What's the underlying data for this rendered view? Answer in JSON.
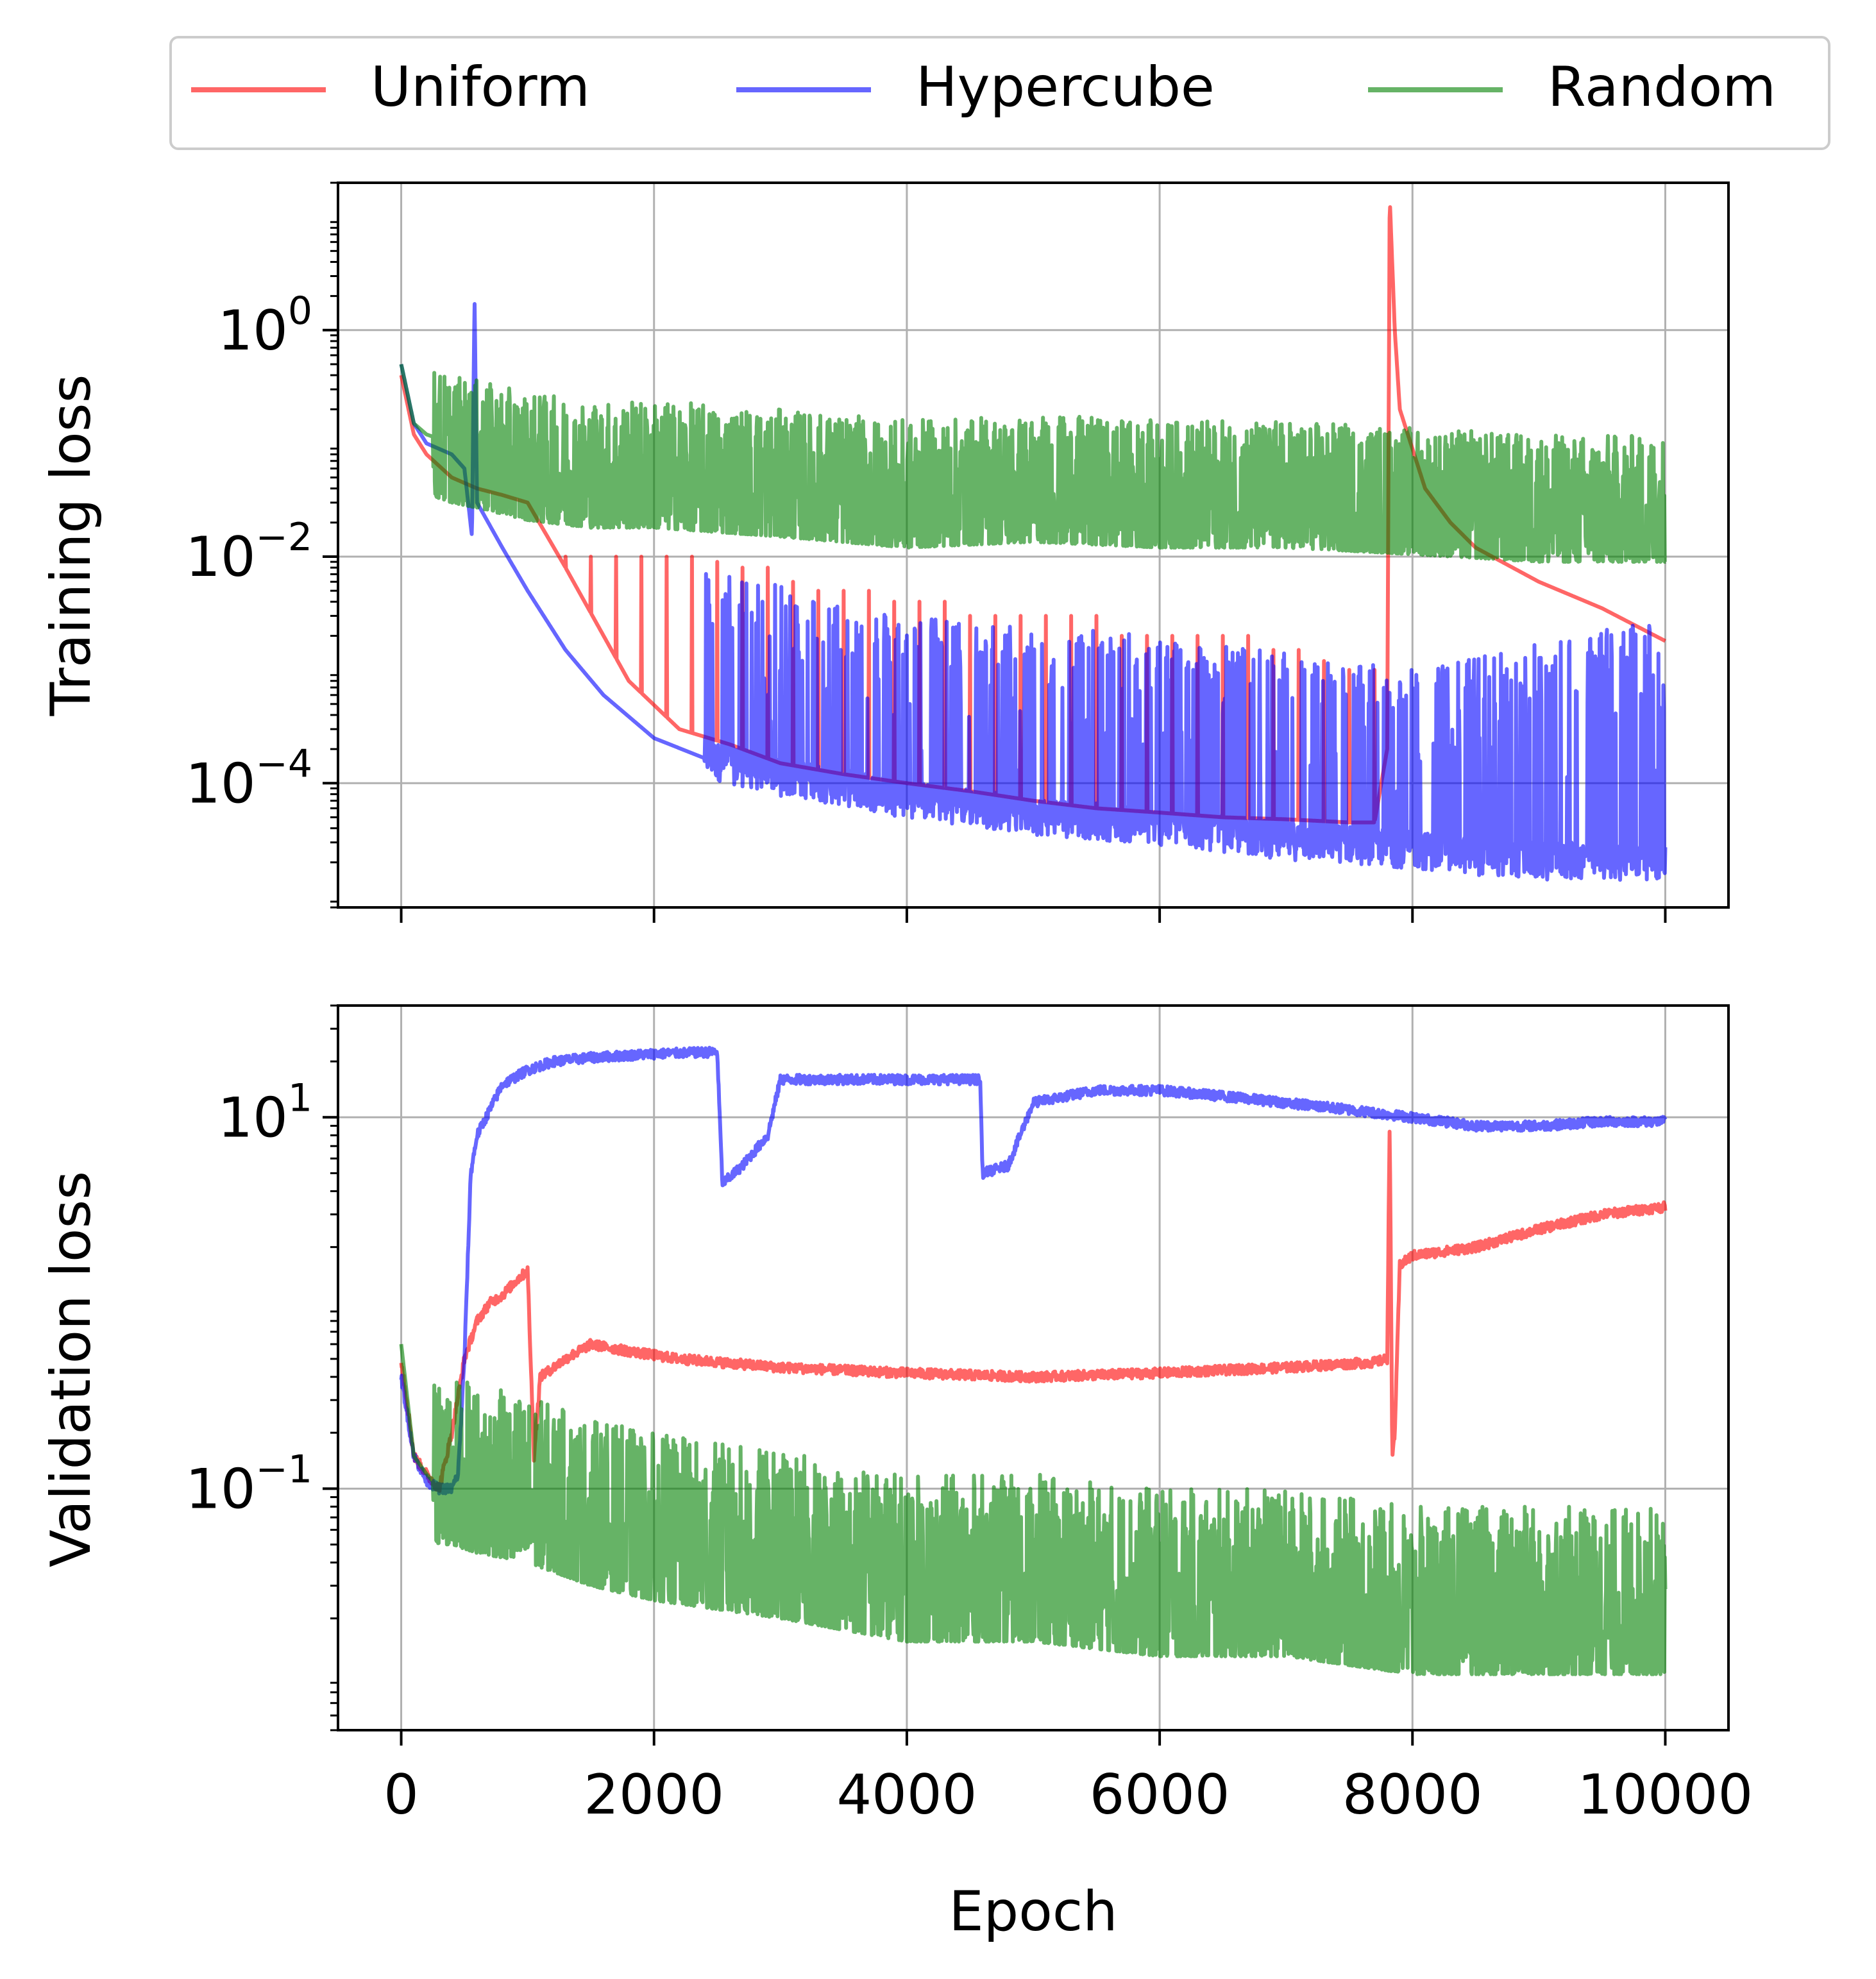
{
  "colors": {
    "uniform": "#ff0000",
    "hypercube": "#0000ff",
    "random": "#008000",
    "grid": "#b0b0b0",
    "axes": "#000000"
  },
  "legend": {
    "placement": "top-center, above plots, 3 columns",
    "entries": [
      "Uniform",
      "Hypercube",
      "Random"
    ]
  },
  "chart_data": [
    {
      "type": "line",
      "panel": "top",
      "title": "",
      "xlabel": "",
      "ylabel": "Training loss",
      "yscale": "log",
      "xlim": [
        -500,
        10500
      ],
      "ylim": [
        8e-06,
        20
      ],
      "xticks": [
        0,
        2000,
        4000,
        6000,
        8000,
        10000
      ],
      "xtick_labels_visible": false,
      "yticks": [
        {
          "value": 1,
          "base": "10",
          "exp": "0"
        },
        {
          "value": 0.01,
          "base": "10",
          "exp": "−2"
        },
        {
          "value": 0.0001,
          "base": "10",
          "exp": "−4"
        }
      ],
      "grid": true,
      "noise_level": "high (oscillating)",
      "series": [
        {
          "name": "Uniform",
          "color": "#ff0000",
          "x": [
            0,
            100,
            200,
            400,
            600,
            800,
            1000,
            1300,
            1800,
            2200,
            2600,
            3000,
            3500,
            4000,
            4500,
            5000,
            5500,
            6000,
            6500,
            7000,
            7500,
            7700,
            7800,
            7820,
            7860,
            7900,
            8100,
            8300,
            8500,
            9000,
            9500,
            10000
          ],
          "y": [
            0.4,
            0.12,
            0.08,
            0.05,
            0.04,
            0.035,
            0.03,
            0.008,
            0.0008,
            0.0003,
            0.00022,
            0.00015,
            0.00012,
            0.0001,
            8.5e-05,
            7e-05,
            6e-05,
            5.5e-05,
            5e-05,
            4.8e-05,
            4.5e-05,
            4.5e-05,
            0.0002,
            15,
            1.0,
            0.2,
            0.04,
            0.02,
            0.012,
            0.006,
            0.0035,
            0.0018
          ],
          "spikes": {
            "x": [
              1300,
              1500,
              1700,
              1900,
              2100,
              2300,
              2500,
              2700,
              2900,
              3100,
              3300,
              3500,
              3700,
              3900,
              4100,
              4300,
              4500,
              4700,
              4900,
              5100,
              5300,
              5500,
              5700,
              5900,
              6100,
              6300,
              6500,
              6700,
              6900,
              7100,
              7300,
              7500,
              7700
            ],
            "y": [
              0.01,
              0.01,
              0.01,
              0.01,
              0.01,
              0.01,
              0.009,
              0.008,
              0.008,
              0.006,
              0.005,
              0.005,
              0.005,
              0.004,
              0.004,
              0.004,
              0.003,
              0.003,
              0.003,
              0.003,
              0.003,
              0.003,
              0.002,
              0.002,
              0.002,
              0.002,
              0.002,
              0.002,
              0.0015,
              0.0015,
              0.0012,
              0.001,
              0.001
            ]
          }
        },
        {
          "name": "Hypercube",
          "color": "#0000ff",
          "x": [
            0,
            100,
            200,
            400,
            500,
            560,
            580,
            600,
            800,
            1000,
            1300,
            1600,
            2000,
            2500,
            3000,
            3500,
            4000,
            4500,
            5000,
            5500,
            6000,
            6500,
            7000,
            7500,
            8000,
            8500,
            9000,
            9500,
            10000
          ],
          "y": [
            0.5,
            0.15,
            0.1,
            0.08,
            0.06,
            0.015,
            2.0,
            0.03,
            0.012,
            0.005,
            0.0015,
            0.0006,
            0.00025,
            0.00015,
            0.00011,
            9e-05,
            7e-05,
            6e-05,
            5e-05,
            4.5e-05,
            4e-05,
            3.5e-05,
            3e-05,
            2.8e-05,
            2.5e-05,
            2.2e-05,
            2e-05,
            2e-05,
            2e-05
          ],
          "oscillation": {
            "from_x": 2400,
            "to_x": 10000,
            "high": [
              0.008,
              0.003,
              0.002,
              0.001,
              0.003
            ],
            "high_x": [
              2400,
              4000,
              6000,
              8000,
              10000
            ]
          }
        },
        {
          "name": "Random",
          "color": "#008000",
          "x": [
            0,
            100,
            200,
            400,
            600,
            1000,
            1500,
            2000,
            3000,
            4000,
            5000,
            6000,
            7000,
            8000,
            9000,
            10000
          ],
          "y": [
            0.5,
            0.15,
            0.12,
            0.1,
            0.09,
            0.07,
            0.06,
            0.06,
            0.05,
            0.04,
            0.045,
            0.04,
            0.04,
            0.035,
            0.03,
            0.03
          ],
          "oscillation": {
            "low_factor": 0.3,
            "high_factor": 4
          }
        }
      ]
    },
    {
      "type": "line",
      "panel": "bottom",
      "title": "",
      "xlabel": "Epoch",
      "ylabel": "Validation loss",
      "yscale": "log",
      "xlim": [
        -500,
        10500
      ],
      "ylim": [
        0.005,
        40
      ],
      "xticks": [
        0,
        2000,
        4000,
        6000,
        8000,
        10000
      ],
      "xtick_labels": [
        "0",
        "2000",
        "4000",
        "6000",
        "8000",
        "10000"
      ],
      "yticks": [
        {
          "value": 10,
          "base": "10",
          "exp": "1"
        },
        {
          "value": 0.1,
          "base": "10",
          "exp": "−1"
        }
      ],
      "grid": true,
      "series": [
        {
          "name": "Uniform",
          "color": "#ff0000",
          "x": [
            0,
            100,
            200,
            300,
            400,
            500,
            600,
            700,
            800,
            900,
            1000,
            1050,
            1100,
            1300,
            1500,
            1800,
            2200,
            3000,
            4000,
            5000,
            6000,
            7000,
            7700,
            7800,
            7820,
            7840,
            7860,
            7900,
            8000,
            8500,
            9000,
            9500,
            10000
          ],
          "y": [
            0.5,
            0.15,
            0.12,
            0.1,
            0.2,
            0.5,
            0.8,
            1.0,
            1.1,
            1.3,
            1.5,
            0.15,
            0.4,
            0.5,
            0.6,
            0.55,
            0.5,
            0.45,
            0.42,
            0.4,
            0.42,
            0.45,
            0.48,
            0.5,
            10,
            0.15,
            0.2,
            1.6,
            1.8,
            2.0,
            2.5,
            3.0,
            3.3
          ]
        },
        {
          "name": "Hypercube",
          "color": "#0000ff",
          "x": [
            0,
            100,
            200,
            300,
            400,
            450,
            500,
            550,
            600,
            800,
            1000,
            1200,
            1500,
            2000,
            2500,
            2540,
            2560,
            2700,
            2900,
            3000,
            3500,
            4000,
            4500,
            4580,
            4600,
            4800,
            5000,
            5500,
            6000,
            6500,
            7000,
            7500,
            8000,
            8500,
            9000,
            9500,
            10000
          ],
          "y": [
            0.4,
            0.15,
            0.11,
            0.1,
            0.1,
            0.12,
            0.5,
            5.0,
            8.0,
            15,
            18,
            20,
            21,
            22,
            22.5,
            4.5,
            4.5,
            5.5,
            8,
            16,
            16,
            16,
            16,
            16,
            5,
            5.5,
            12,
            14,
            14,
            13,
            12,
            11,
            10,
            9,
            9,
            9.5,
            9.5
          ]
        },
        {
          "name": "Random",
          "color": "#008000",
          "x": [
            0,
            100,
            200,
            300,
            400,
            600,
            800,
            1000,
            1500,
            2000,
            3000,
            4000,
            5000,
            6000,
            7000,
            8000,
            9000,
            10000
          ],
          "y": [
            0.6,
            0.15,
            0.12,
            0.1,
            0.1,
            0.09,
            0.085,
            0.08,
            0.06,
            0.05,
            0.04,
            0.03,
            0.03,
            0.025,
            0.025,
            0.02,
            0.02,
            0.02
          ],
          "oscillation": {
            "low_factor": 0.5,
            "high_factor": 4
          }
        }
      ]
    }
  ]
}
